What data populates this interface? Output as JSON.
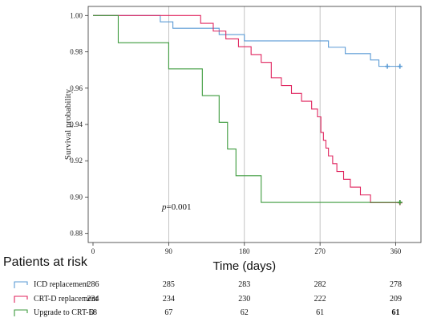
{
  "chart_data": {
    "type": "line",
    "subtype": "kaplan-meier step",
    "ylabel": "Survival probability",
    "xlabel": "Time (days)",
    "xlim": [
      0,
      390
    ],
    "ylim": [
      0.875,
      1.005
    ],
    "x_ticks": [
      0,
      90,
      180,
      270,
      360
    ],
    "x_tick_labels": [
      "0",
      "90",
      "180",
      "270",
      "360"
    ],
    "y_ticks": [
      0.88,
      0.9,
      0.92,
      0.94,
      0.96,
      0.98,
      1.0
    ],
    "y_tick_labels": [
      "0.88",
      "0.90",
      "0.92",
      "0.94",
      "0.96",
      "0.98",
      "1.00"
    ],
    "grid": "vertical lines at x ticks",
    "annotation": {
      "prefix": "p",
      "text": "=0.001",
      "x": 82,
      "y": 0.895
    },
    "series": [
      {
        "name": "ICD replacement",
        "color": "#5b9bd5",
        "x": [
          0,
          70,
          80,
          95,
          150,
          180,
          250,
          280,
          300,
          315,
          330,
          340,
          350,
          365
        ],
        "y": [
          1.0,
          1.0,
          0.9965,
          0.993,
          0.9895,
          0.986,
          0.986,
          0.9825,
          0.979,
          0.979,
          0.9755,
          0.972,
          0.972,
          0.972
        ],
        "censor": [
          350,
          365
        ]
      },
      {
        "name": "CRT-D replacement",
        "color": "#e0245e",
        "x": [
          0,
          110,
          128,
          143,
          158,
          173,
          188,
          200,
          212,
          224,
          236,
          248,
          260,
          267,
          271,
          274,
          277,
          280,
          285,
          290,
          298,
          306,
          318,
          330,
          350,
          360,
          365
        ],
        "y": [
          1.0,
          1.0,
          0.9957,
          0.9914,
          0.9871,
          0.9828,
          0.9785,
          0.9742,
          0.9657,
          0.9614,
          0.9571,
          0.9528,
          0.9485,
          0.9442,
          0.9356,
          0.9313,
          0.927,
          0.9227,
          0.9184,
          0.9141,
          0.9098,
          0.9055,
          0.9012,
          0.8969,
          0.8969,
          0.8969,
          0.8969
        ],
        "censor": [
          365
        ]
      },
      {
        "name": "Upgrade to CRT-D",
        "color": "#3c9a3c",
        "x": [
          0,
          30,
          90,
          130,
          150,
          160,
          170,
          200,
          360,
          365
        ],
        "y": [
          1.0,
          0.985,
          0.9706,
          0.9559,
          0.9412,
          0.9265,
          0.9118,
          0.8971,
          0.8971,
          0.8971
        ],
        "censor": [
          365
        ]
      }
    ]
  },
  "risk_table": {
    "title": "Patients at risk",
    "rows": [
      {
        "label": "ICD replacement",
        "color": "#5b9bd5",
        "values": [
          "286",
          "285",
          "283",
          "282",
          "278"
        ]
      },
      {
        "label": "CRT-D replacement",
        "color": "#e0245e",
        "values": [
          "234",
          "234",
          "230",
          "222",
          "209"
        ]
      },
      {
        "label": "Upgrade to CRT-D",
        "color": "#3c9a3c",
        "values": [
          "68",
          "67",
          "62",
          "61",
          "61"
        ]
      }
    ]
  }
}
